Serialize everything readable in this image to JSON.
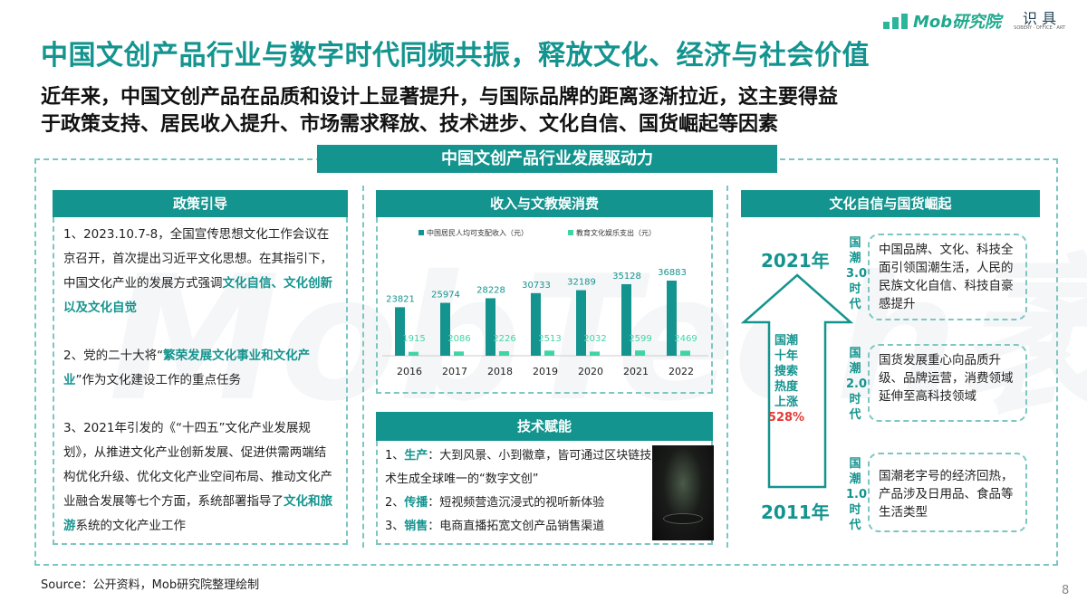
{
  "header": {
    "title": "中国文创产品行业与数字时代同频共振，释放文化、经济与社会价值",
    "subtitle_lines": [
      "近年来，中国文创产品在品质和设计上显著提升，与国际品牌的距离逐渐拉近，这主要得益",
      "于政策支持、居民收入提升、市场需求释放、技术进步、文化自信、国货崛起等因素"
    ],
    "logo_brand": "Mob研究院",
    "logo_partner": "识 具",
    "logo_partner_small": "SOBERY · OFFICE · ART"
  },
  "watermark": "MobTech袤博",
  "frame_title": "中国文创产品行业发展驱动力",
  "policy": {
    "title": "政策引导",
    "items": [
      {
        "parts": [
          {
            "t": "1、2023.10.7-8，全国宣传思想文化工作会议在京召开，首次提出习近平文化思想。在其指引下，中国文化产业的发展方式强调"
          },
          {
            "t": "文化自信、文化创新以及文化自觉",
            "hl": true
          }
        ]
      },
      {
        "parts": [
          {
            "t": "2、党的二十大将“"
          },
          {
            "t": "繁荣发展文化事业和文化产业",
            "hl": true
          },
          {
            "t": "”作为文化建设工作的重点任务"
          }
        ]
      },
      {
        "parts": [
          {
            "t": "3、2021年引发的《“十四五”文化产业发展规划》，从推进文化产业创新发展、促进供需两端结构优化升级、优化文化产业空间布局、推动文化产业融合发展等七个方面，系统部署指导了"
          },
          {
            "t": "文化和旅游",
            "hl": true
          },
          {
            "t": "系统的文化产业工作"
          }
        ]
      }
    ]
  },
  "income": {
    "title": "收入与文教娱消费"
  },
  "chart_data": {
    "type": "bar",
    "categories": [
      "2016",
      "2017",
      "2018",
      "2019",
      "2020",
      "2021",
      "2022"
    ],
    "series": [
      {
        "name": "中国居民人均可支配收入（元）",
        "color": "#14948f",
        "values": [
          23821,
          25974,
          28228,
          30733,
          32189,
          35128,
          36883
        ]
      },
      {
        "name": "教育文化娱乐支出（元）",
        "color": "#3fd4a6",
        "values": [
          1915,
          2086,
          2226,
          2513,
          2032,
          2599,
          2469
        ]
      }
    ],
    "ylim": [
      0,
      40000
    ],
    "legend": "top",
    "grid": false
  },
  "tech": {
    "title": "技术赋能",
    "items": [
      {
        "num": "1、",
        "key": "生产",
        "text": "：大到风景、小到徽章，皆可通过区块链技术生成全球唯一的“数字文创”"
      },
      {
        "num": "2、",
        "key": "传播",
        "text": "：短视频营造沉浸式的视听新体验"
      },
      {
        "num": "3、",
        "key": "销售",
        "text": "：电商直播拓宽文创产品销售渠道"
      }
    ]
  },
  "culture": {
    "title": "文化自信与国货崛起",
    "year_top": "2021年",
    "year_bottom": "2011年",
    "arrow_lines": [
      "国潮",
      "十年",
      "搜索",
      "热度",
      "上涨"
    ],
    "arrow_pct": "528%",
    "eras": [
      {
        "label": [
          "国",
          "潮",
          "3.0",
          "时",
          "代"
        ],
        "text": "中国品牌、文化、科技全面引领国潮生活，人民的民族文化自信、科技自豪感提升"
      },
      {
        "label": [
          "国",
          "潮",
          "2.0",
          "时",
          "代"
        ],
        "text": "国货发展重心向品质升级、品牌运营，消费领域延伸至高科技领域"
      },
      {
        "label": [
          "国",
          "潮",
          "1.0",
          "时",
          "代"
        ],
        "text": "国潮老字号的经济回热，产品涉及日用品、食品等生活类型"
      }
    ]
  },
  "footer": {
    "source": "Source：公开资料，Mob研究院整理绘制",
    "page": "8"
  }
}
